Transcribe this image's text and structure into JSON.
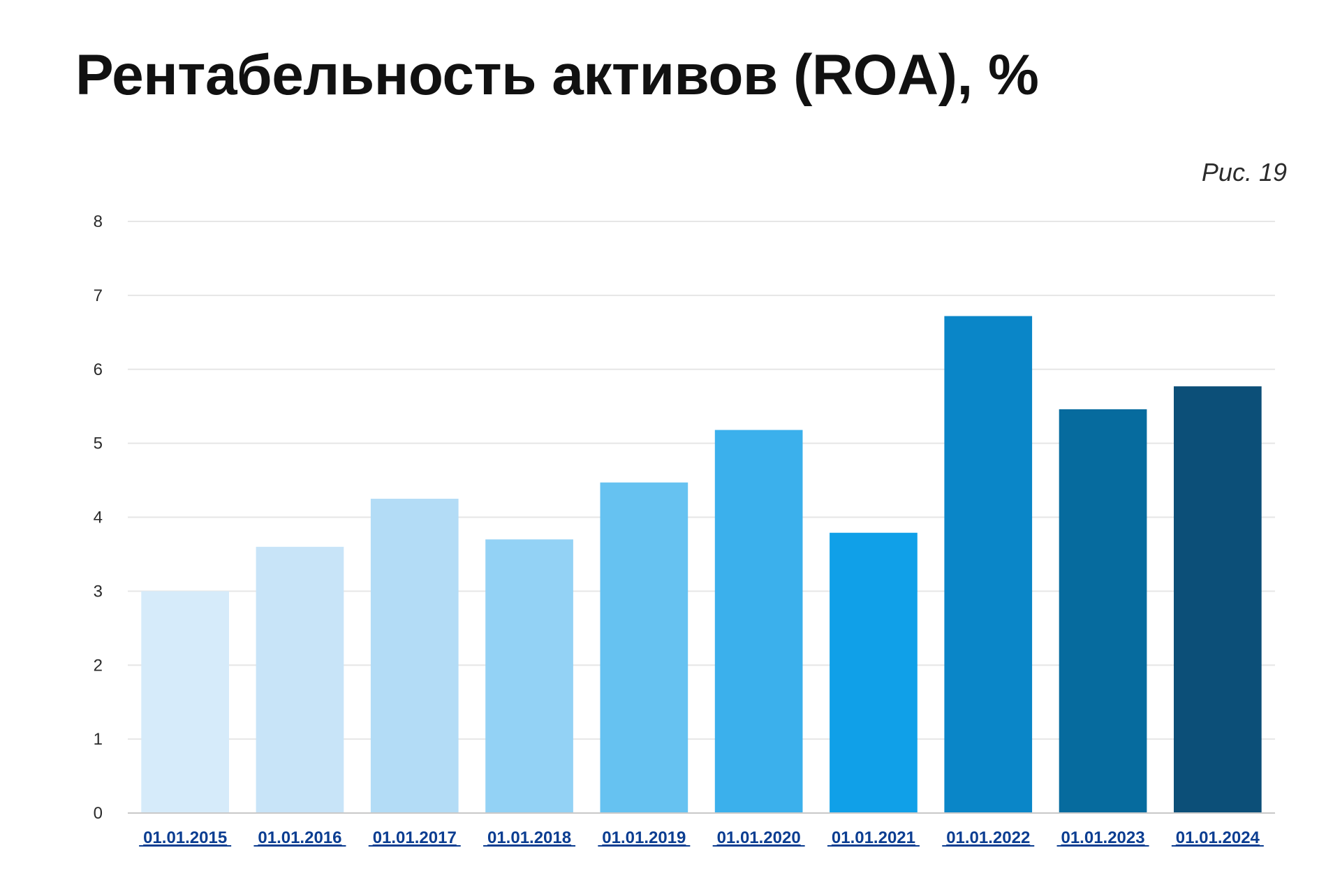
{
  "page": {
    "title": "Рентабельность активов (ROA), %",
    "figure_label": "Рис. 19"
  },
  "chart_data": {
    "type": "bar",
    "title": "Рентабельность активов (ROA), %",
    "xlabel": "",
    "ylabel": "",
    "ylim": [
      0,
      8
    ],
    "yticks": [
      0,
      1,
      2,
      3,
      4,
      5,
      6,
      7,
      8
    ],
    "grid": true,
    "legend": "none",
    "categories": [
      "01.01.2015",
      "01.01.2016",
      "01.01.2017",
      "01.01.2018",
      "01.01.2019",
      "01.01.2020",
      "01.01.2021",
      "01.01.2022",
      "01.01.2023",
      "01.01.2024"
    ],
    "values": [
      3.0,
      3.6,
      4.25,
      3.7,
      4.47,
      5.18,
      3.79,
      6.72,
      5.46,
      5.77
    ],
    "colors": [
      "#d6ebfa",
      "#c8e4f8",
      "#b3dcf6",
      "#93d2f5",
      "#66c2f1",
      "#3bb0ec",
      "#10a0e8",
      "#0a86c8",
      "#066b9e",
      "#0c4f78"
    ],
    "grid_color": "#e6e6e6",
    "axis_color": "#c9c9c9"
  }
}
